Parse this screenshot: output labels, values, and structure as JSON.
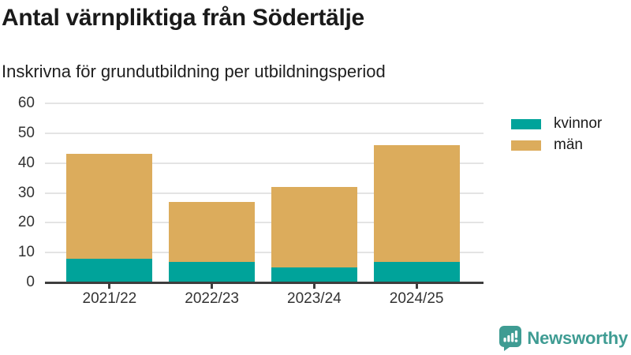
{
  "header": {
    "title": "Antal värnpliktiga från Södertälje",
    "subtitle": "Inskrivna för grundutbildning per utbildningsperiod"
  },
  "chart_data": {
    "type": "bar",
    "stacked": true,
    "title": "Antal värnpliktiga från Södertälje",
    "subtitle": "Inskrivna för grundutbildning per utbildningsperiod",
    "categories": [
      "2021/22",
      "2022/23",
      "2023/24",
      "2024/25"
    ],
    "series": [
      {
        "name": "kvinnor",
        "color": "#00a39a",
        "values": [
          8,
          7,
          5,
          7
        ]
      },
      {
        "name": "män",
        "color": "#dcac5c",
        "values": [
          35,
          20,
          27,
          39
        ]
      }
    ],
    "totals": [
      43,
      27,
      32,
      46
    ],
    "xlabel": "",
    "ylabel": "",
    "ylim": [
      0,
      60
    ],
    "yticks": [
      0,
      10,
      20,
      30,
      40,
      50,
      60
    ],
    "grid": "horizontal",
    "legend_position": "right"
  },
  "colors": {
    "kvinnor": "#00a39a",
    "man": "#dcac5c",
    "gridline": "#e4e4e4",
    "axis": "#3e3e3e",
    "brand_teal": "#3f9c93"
  },
  "footer": {
    "brand": "Newsworthy",
    "logo_icon": "bar-chart-speech-bubble-icon"
  }
}
